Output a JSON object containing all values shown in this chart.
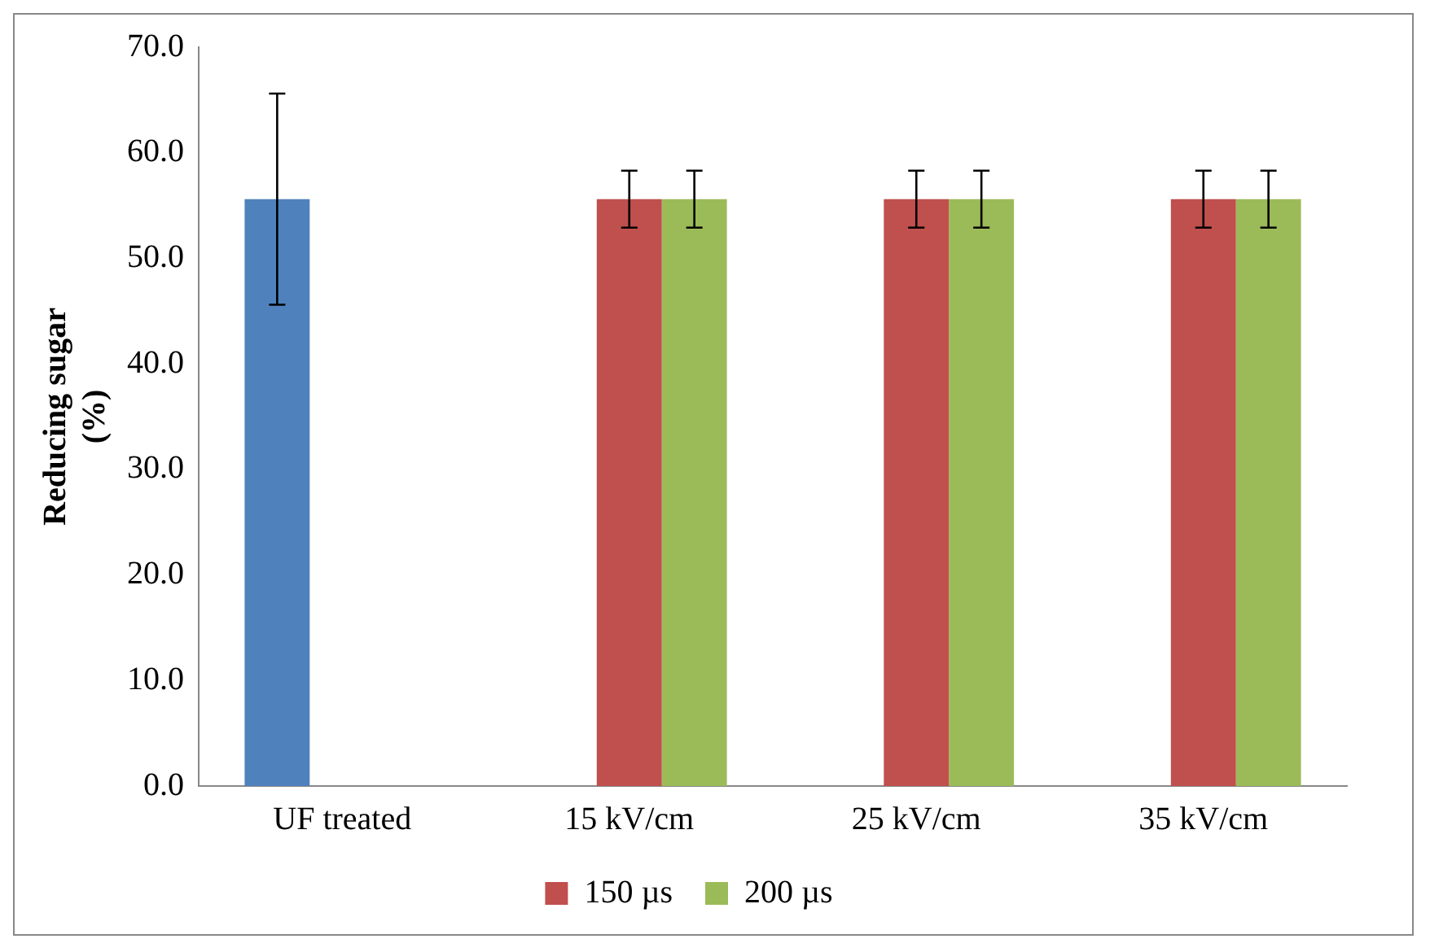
{
  "chart_data": {
    "type": "bar",
    "ylabel": "Reducing sugar (%)",
    "categories": [
      "UF treated",
      "15 kV/cm",
      "25 kV/cm",
      "35 kV/cm"
    ],
    "series": [
      {
        "color": "#4f81bd",
        "values": [
          55.6,
          null,
          null,
          null
        ],
        "errors": [
          10,
          null,
          null,
          null
        ]
      },
      {
        "name": "150 µs",
        "color": "#c0504d",
        "values": [
          null,
          55.6,
          55.6,
          55.6
        ],
        "errors": [
          null,
          2.7,
          2.7,
          2.7
        ]
      },
      {
        "name": "200 µs",
        "color": "#9bbb59",
        "values": [
          null,
          55.6,
          55.6,
          55.6
        ],
        "errors": [
          null,
          2.7,
          2.7,
          2.7
        ]
      }
    ],
    "ylim": [
      0,
      70
    ],
    "yticks": [
      {
        "value": 0,
        "label": "0.0"
      },
      {
        "value": 10,
        "label": "10.0"
      },
      {
        "value": 20,
        "label": "20.0"
      },
      {
        "value": 30,
        "label": "30.0"
      },
      {
        "value": 40,
        "label": "40.0"
      },
      {
        "value": 50,
        "label": "50.0"
      },
      {
        "value": 60,
        "label": "60.0"
      },
      {
        "value": 70,
        "label": "70.0"
      }
    ],
    "grid": false,
    "legend": "bottom"
  }
}
